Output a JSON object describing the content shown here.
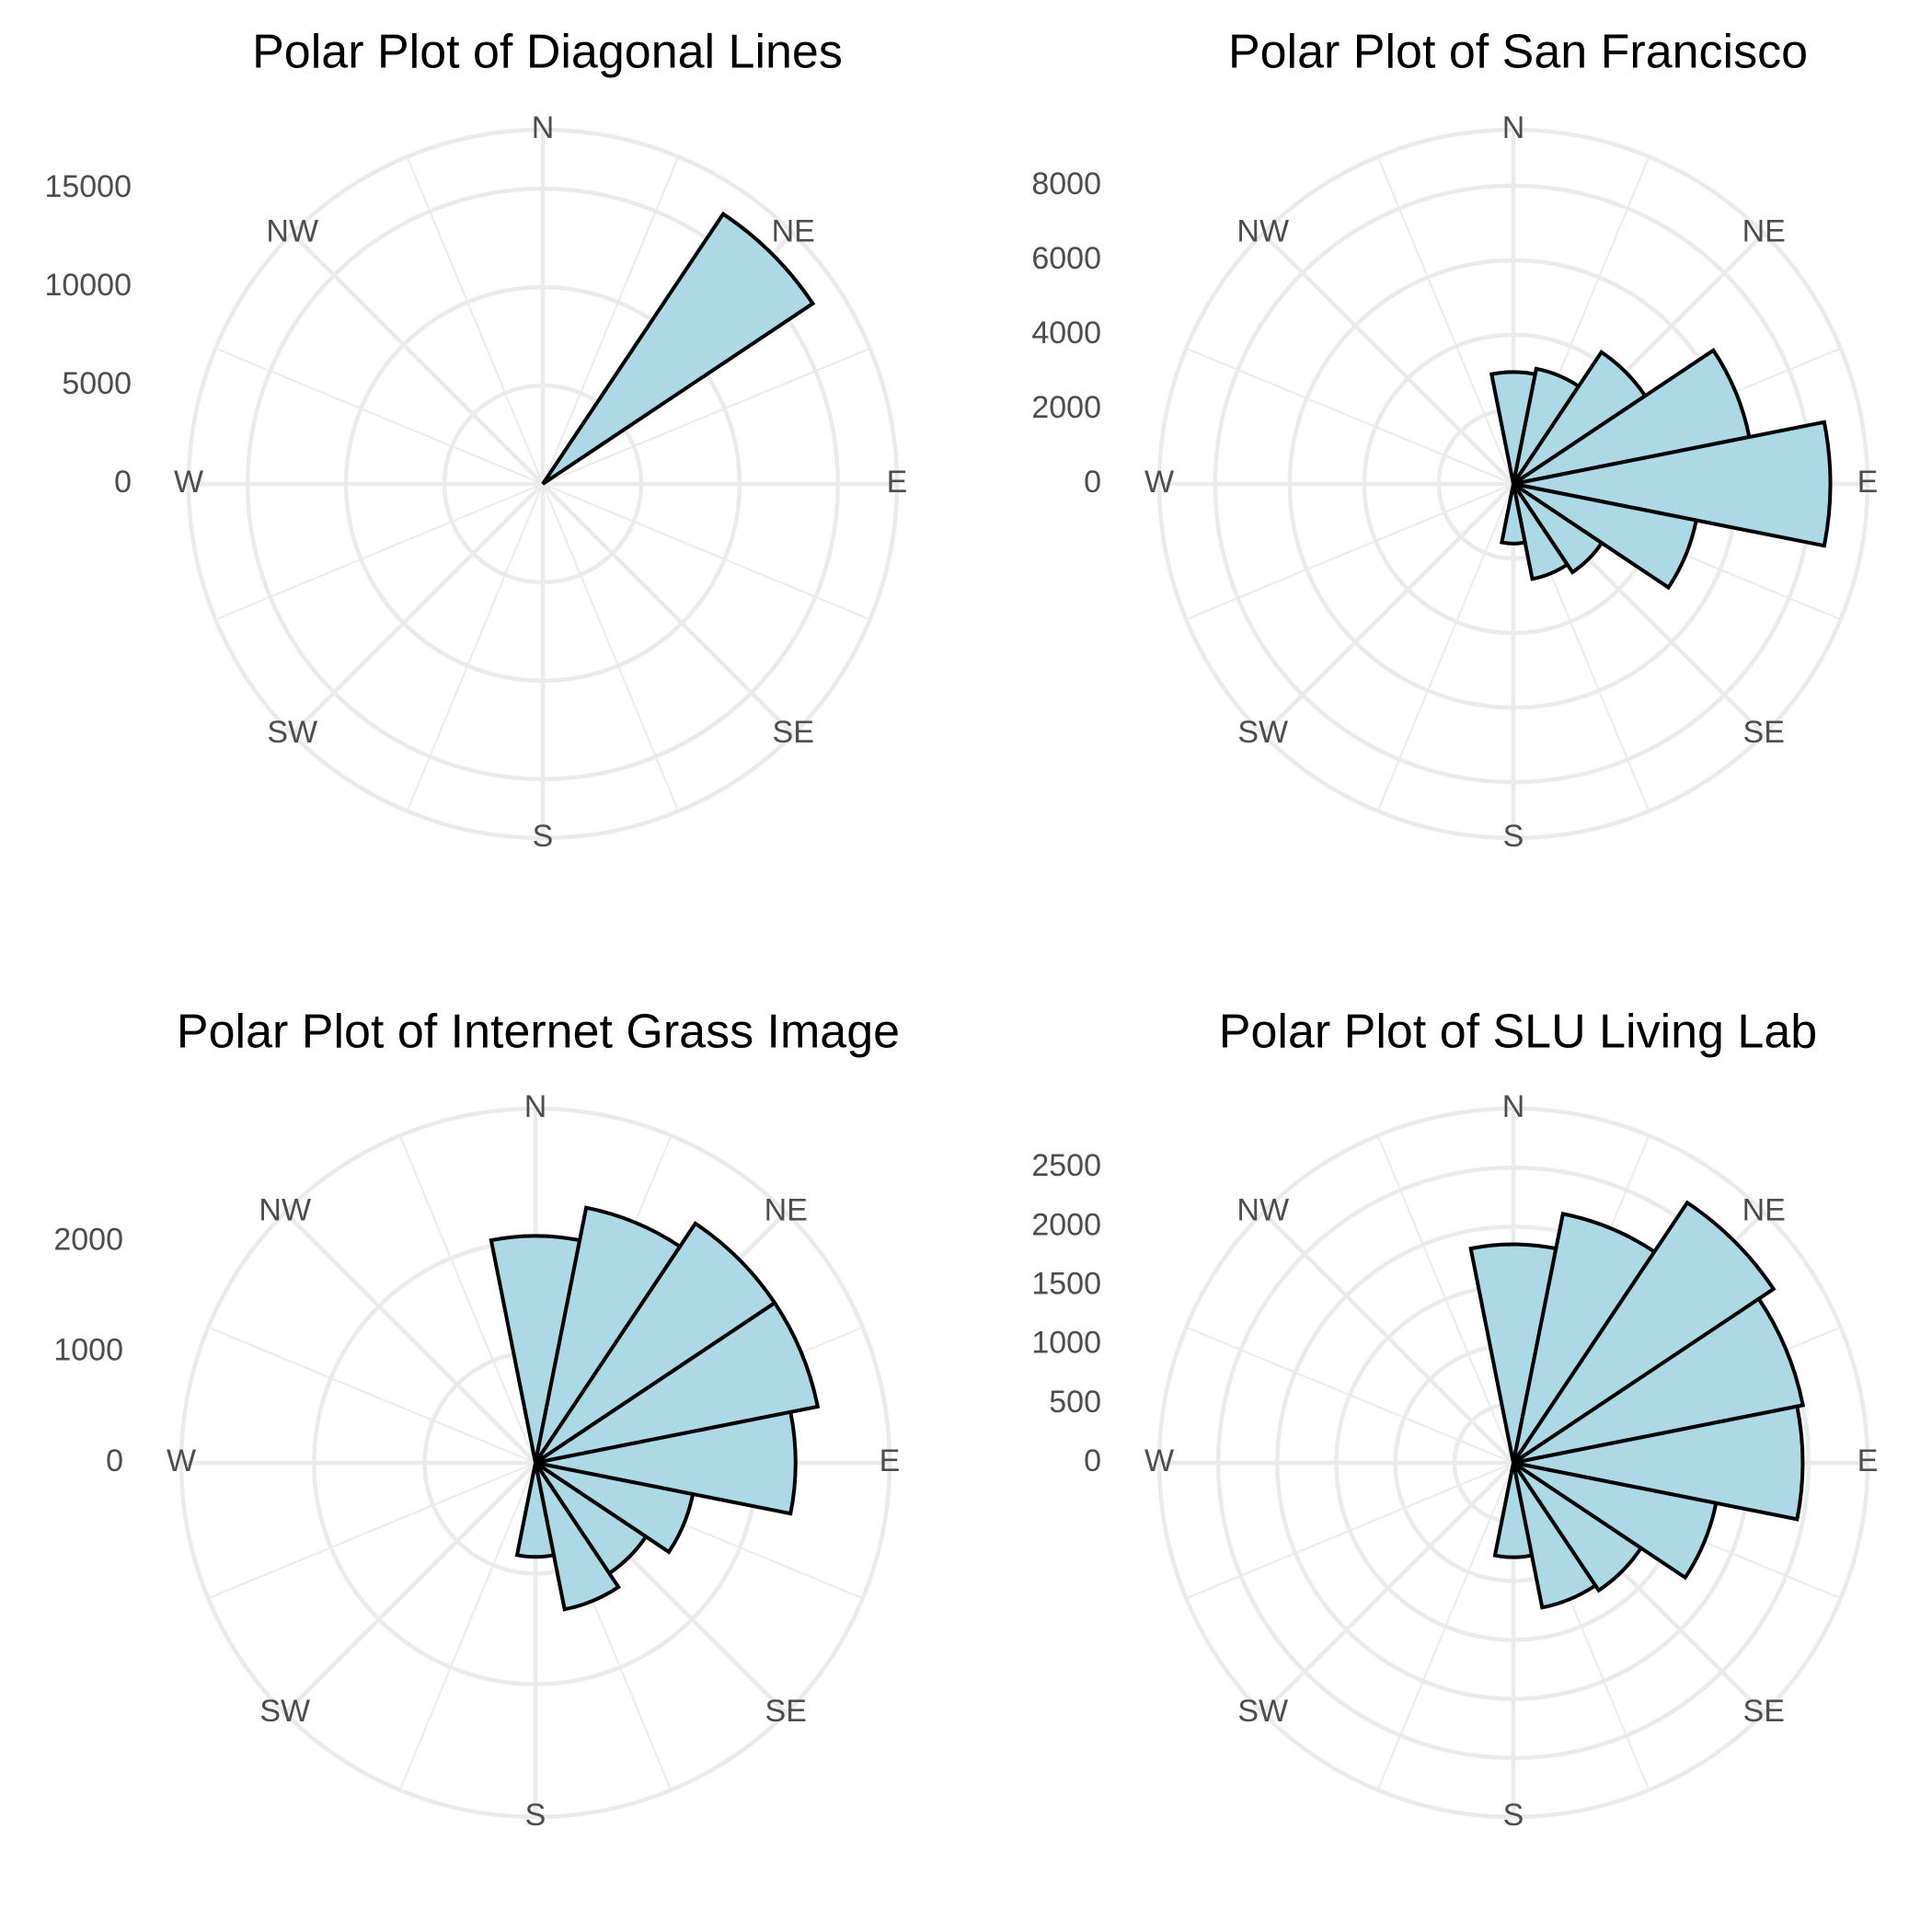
{
  "colors": {
    "bar_fill": "#add8e6",
    "bar_stroke": "#000000",
    "grid": "#ebebeb",
    "text": "#4d4d4d"
  },
  "chart_data": [
    {
      "type": "polar-bar",
      "title": "Polar Plot of Diagonal Lines",
      "directions": [
        "N",
        "NE",
        "E",
        "SE",
        "S",
        "SW",
        "W",
        "NW"
      ],
      "bin_width_deg": 22.5,
      "rmax": 18000,
      "ticks": [
        0,
        5000,
        10000,
        15000
      ],
      "bins": [
        {
          "angle": 0,
          "value": 0
        },
        {
          "angle": 22.5,
          "value": 0
        },
        {
          "angle": 45,
          "value": 16500
        },
        {
          "angle": 67.5,
          "value": 0
        },
        {
          "angle": 90,
          "value": 0
        },
        {
          "angle": 112.5,
          "value": 0
        },
        {
          "angle": 135,
          "value": 0
        },
        {
          "angle": 157.5,
          "value": 0
        }
      ]
    },
    {
      "type": "polar-bar",
      "title": "Polar Plot of San Francisco",
      "directions": [
        "N",
        "NE",
        "E",
        "SE",
        "S",
        "SW",
        "W",
        "NW"
      ],
      "bin_width_deg": 22.5,
      "rmax": 9500,
      "ticks": [
        0,
        2000,
        4000,
        6000,
        8000
      ],
      "bins": [
        {
          "angle": 0,
          "value": 3000
        },
        {
          "angle": 22.5,
          "value": 3150
        },
        {
          "angle": 45,
          "value": 4250
        },
        {
          "angle": 67.5,
          "value": 6450
        },
        {
          "angle": 90,
          "value": 8500
        },
        {
          "angle": 112.5,
          "value": 5000
        },
        {
          "angle": 135,
          "value": 2850
        },
        {
          "angle": 157.5,
          "value": 2600
        },
        {
          "angle": 180,
          "value": 1600
        }
      ]
    },
    {
      "type": "polar-bar",
      "title": "Polar Plot of Internet Grass Image",
      "directions": [
        "N",
        "NE",
        "E",
        "SE",
        "S",
        "SW",
        "W",
        "NW"
      ],
      "bin_width_deg": 22.5,
      "rmax": 3200,
      "ticks": [
        0,
        1000,
        2000
      ],
      "bins": [
        {
          "angle": 0,
          "value": 2050
        },
        {
          "angle": 22.5,
          "value": 2350
        },
        {
          "angle": 45,
          "value": 2600
        },
        {
          "angle": 67.5,
          "value": 2600
        },
        {
          "angle": 90,
          "value": 2350
        },
        {
          "angle": 112.5,
          "value": 1450
        },
        {
          "angle": 135,
          "value": 1200
        },
        {
          "angle": 157.5,
          "value": 1350
        },
        {
          "angle": 180,
          "value": 850
        }
      ]
    },
    {
      "type": "polar-bar",
      "title": "Polar Plot of SLU Living Lab",
      "directions": [
        "N",
        "NE",
        "E",
        "SE",
        "S",
        "SW",
        "W",
        "NW"
      ],
      "bin_width_deg": 22.5,
      "rmax": 3000,
      "ticks": [
        0,
        500,
        1000,
        1500,
        2000,
        2500
      ],
      "bins": [
        {
          "angle": 0,
          "value": 1850
        },
        {
          "angle": 22.5,
          "value": 2150
        },
        {
          "angle": 45,
          "value": 2650
        },
        {
          "angle": 67.5,
          "value": 2500
        },
        {
          "angle": 90,
          "value": 2450
        },
        {
          "angle": 112.5,
          "value": 1750
        },
        {
          "angle": 135,
          "value": 1300
        },
        {
          "angle": 157.5,
          "value": 1250
        },
        {
          "angle": 180,
          "value": 800
        }
      ]
    }
  ]
}
